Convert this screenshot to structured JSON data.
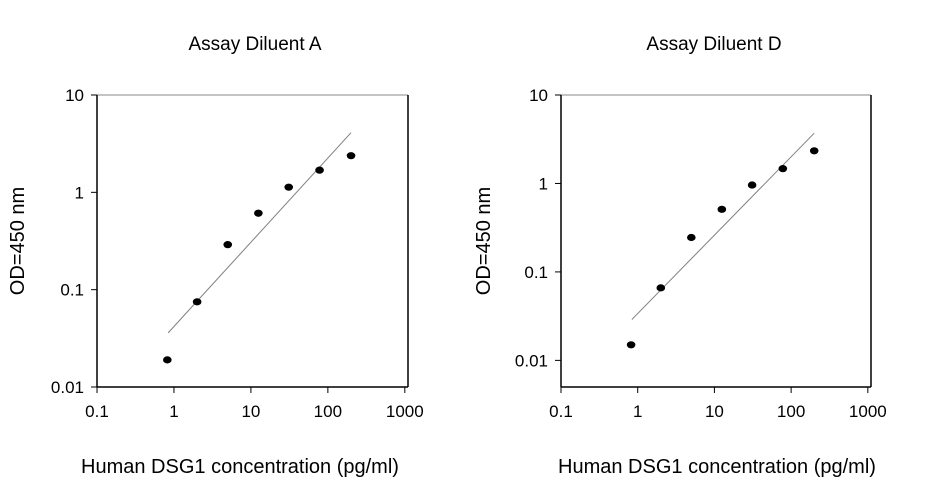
{
  "chart_data": [
    {
      "type": "scatter",
      "title": "Assay Diluent A",
      "xlabel": "Human DSG1 concentration (pg/ml)",
      "ylabel": "OD=450 nm",
      "xscale": "log",
      "yscale": "log",
      "xlim": [
        0.1,
        1100
      ],
      "ylim": [
        0.01,
        10
      ],
      "xticks": [
        "0.1",
        "1",
        "10",
        "100",
        "1000"
      ],
      "yticks": [
        "0.01",
        "0.1",
        "1",
        "10"
      ],
      "grid": false,
      "points": {
        "x": [
          0.82,
          2.0,
          5.0,
          12.5,
          31,
          78,
          200
        ],
        "y": [
          0.019,
          0.075,
          0.29,
          0.61,
          1.13,
          1.69,
          2.38
        ]
      },
      "fit_line": {
        "x": [
          0.84,
          200
        ],
        "y": [
          0.036,
          4.1
        ]
      },
      "colors": {
        "points": "#000000",
        "line": "#808080"
      }
    },
    {
      "type": "scatter",
      "title": "Assay Diluent D",
      "xlabel": "Human DSG1 concentration (pg/ml)",
      "ylabel": "OD=450 nm",
      "xscale": "log",
      "yscale": "log",
      "xlim": [
        0.1,
        1100
      ],
      "ylim": [
        0.005,
        10
      ],
      "xticks": [
        "0.1",
        "1",
        "10",
        "100",
        "1000"
      ],
      "yticks": [
        "0.01",
        "0.1",
        "1",
        "10"
      ],
      "grid": false,
      "points": {
        "x": [
          0.82,
          2.0,
          5.0,
          12.5,
          31,
          78,
          200
        ],
        "y": [
          0.015,
          0.066,
          0.245,
          0.51,
          0.96,
          1.47,
          2.34
        ]
      },
      "fit_line": {
        "x": [
          0.84,
          200
        ],
        "y": [
          0.029,
          3.7
        ]
      },
      "colors": {
        "points": "#000000",
        "line": "#808080"
      }
    }
  ]
}
